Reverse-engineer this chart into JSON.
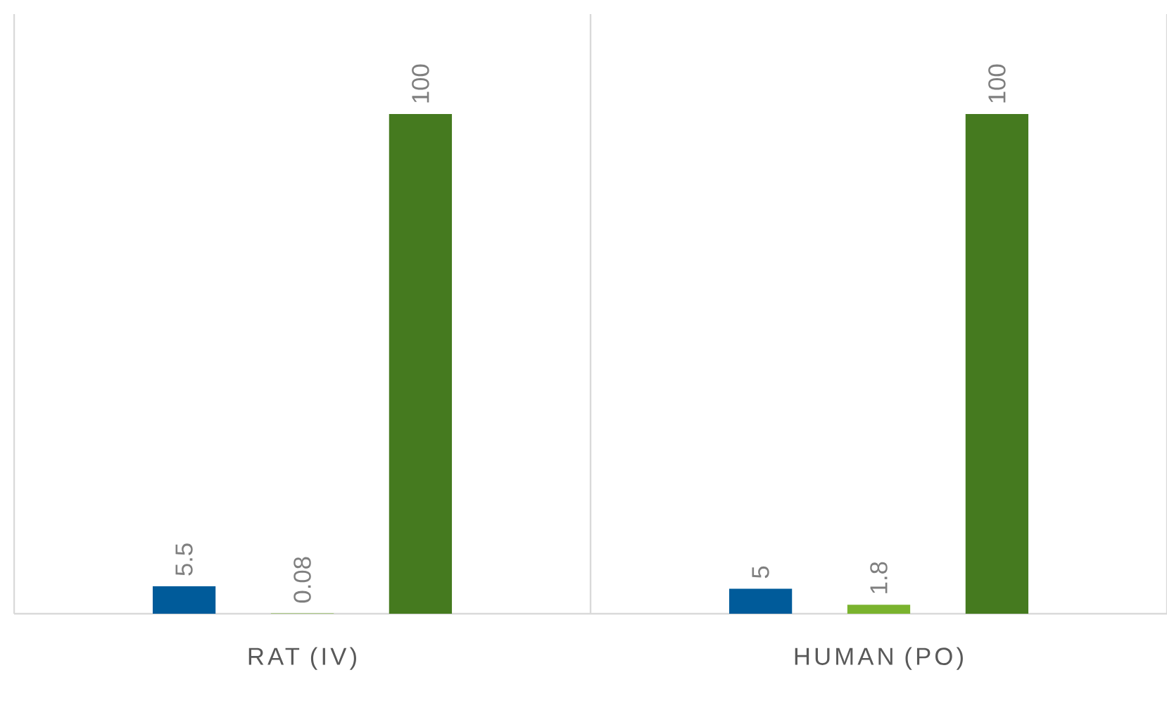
{
  "chart_data": {
    "type": "bar",
    "categories": [
      "RAT (IV)",
      "HUMAN (PO)"
    ],
    "series": [
      {
        "color": "#005b9a",
        "values": [
          5.5,
          5
        ]
      },
      {
        "color": "#7ab32e",
        "values": [
          0.08,
          1.8
        ]
      },
      {
        "color": "#457a1f",
        "values": [
          100,
          100
        ]
      }
    ],
    "ylim": [
      0,
      120
    ],
    "data_labels": true
  }
}
